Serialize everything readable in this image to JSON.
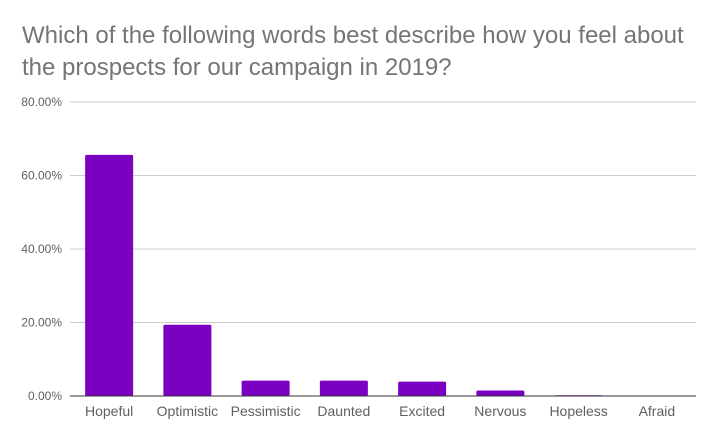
{
  "chart_data": {
    "type": "bar",
    "title": "Which of the following words best describe how you feel about the prospects for our campaign in 2019?",
    "categories": [
      "Hopeful",
      "Optimistic",
      "Pessimistic",
      "Daunted",
      "Excited",
      "Nervous",
      "Hopeless",
      "Afraid"
    ],
    "values": [
      65.6,
      19.4,
      4.2,
      4.2,
      3.9,
      1.5,
      0.2,
      0.0
    ],
    "unit": "percent",
    "xlabel": "",
    "ylabel": "",
    "ylim": [
      0,
      80
    ],
    "yticks": [
      0,
      20,
      40,
      60,
      80
    ],
    "ytick_labels": [
      "0.00%",
      "20.00%",
      "40.00%",
      "60.00%",
      "80.00%"
    ],
    "grid": true,
    "legend": "none",
    "colors": {
      "bar": "#7a00c2",
      "grid": "#cccccc",
      "axis": "#333333",
      "title": "#757575",
      "text": "#5f5f5f"
    }
  }
}
